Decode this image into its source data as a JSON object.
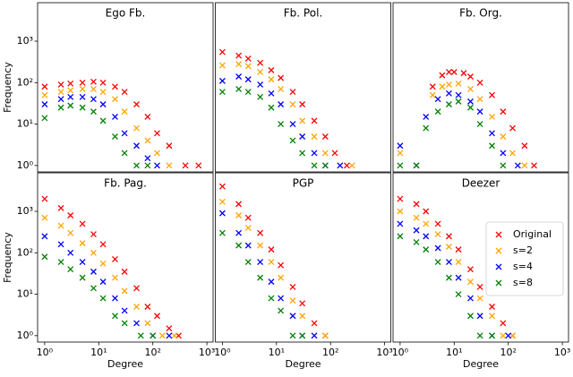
{
  "chart_data": [
    {
      "type": "scatter",
      "title": "Ego Fb.",
      "ylabel": "Frequency",
      "log_x": true,
      "log_y": true,
      "xlim": [
        0.74,
        1300
      ],
      "ylim": [
        0.7,
        8500
      ],
      "yticks": [
        {
          "value": 1,
          "label": "10⁰"
        },
        {
          "value": 10,
          "label": "10¹"
        },
        {
          "value": 100,
          "label": "10²"
        },
        {
          "value": 1000,
          "label": "10³"
        }
      ],
      "series": [
        {
          "color": "#ff0000",
          "x": [
            1,
            2,
            3,
            5,
            8,
            12,
            20,
            30,
            50,
            80,
            120,
            200,
            400,
            700
          ],
          "values": [
            80,
            90,
            95,
            100,
            105,
            100,
            80,
            60,
            30,
            15,
            6,
            3,
            1,
            1
          ]
        },
        {
          "color": "#ffa500",
          "x": [
            1,
            2,
            3,
            5,
            8,
            12,
            20,
            30,
            50,
            80,
            120,
            200
          ],
          "values": [
            50,
            60,
            65,
            70,
            70,
            60,
            40,
            20,
            8,
            4,
            2,
            1
          ]
        },
        {
          "color": "#0000ff",
          "x": [
            1,
            2,
            3,
            5,
            8,
            12,
            20,
            30,
            50,
            80,
            120
          ],
          "values": [
            30,
            40,
            45,
            45,
            40,
            30,
            15,
            6,
            3,
            1.5,
            1
          ]
        },
        {
          "color": "#008000",
          "x": [
            1,
            2,
            3,
            5,
            8,
            12,
            20,
            30,
            50,
            80
          ],
          "values": [
            14,
            25,
            28,
            25,
            20,
            12,
            5,
            2,
            1,
            1
          ]
        }
      ]
    },
    {
      "type": "scatter",
      "title": "Fb. Pol.",
      "log_x": true,
      "log_y": true,
      "xlim": [
        0.74,
        1300
      ],
      "ylim": [
        0.7,
        8500
      ],
      "series": [
        {
          "color": "#ff0000",
          "x": [
            1,
            2,
            3,
            5,
            8,
            12,
            20,
            30,
            50,
            80,
            120,
            200
          ],
          "values": [
            550,
            450,
            380,
            300,
            200,
            130,
            60,
            30,
            12,
            5,
            2,
            1
          ]
        },
        {
          "color": "#ffa500",
          "x": [
            1,
            2,
            3,
            5,
            8,
            12,
            20,
            30,
            50,
            80,
            150,
            250
          ],
          "values": [
            260,
            280,
            250,
            180,
            120,
            70,
            30,
            12,
            5,
            2,
            1,
            1
          ]
        },
        {
          "color": "#0000ff",
          "x": [
            1,
            2,
            3,
            5,
            8,
            12,
            20,
            30,
            50,
            80,
            150
          ],
          "values": [
            110,
            140,
            120,
            90,
            55,
            30,
            10,
            5,
            2,
            1,
            1
          ]
        },
        {
          "color": "#008000",
          "x": [
            1,
            2,
            3,
            5,
            8,
            12,
            20,
            30,
            50,
            80
          ],
          "values": [
            60,
            70,
            60,
            45,
            25,
            10,
            4,
            2,
            1,
            1
          ]
        }
      ]
    },
    {
      "type": "scatter",
      "title": "Fb. Org.",
      "log_x": true,
      "log_y": true,
      "xlim": [
        0.74,
        1300
      ],
      "ylim": [
        0.7,
        8500
      ],
      "series": [
        {
          "color": "#ff0000",
          "x": [
            4,
            6,
            8,
            10,
            15,
            20,
            30,
            50,
            80,
            120,
            200,
            300
          ],
          "values": [
            80,
            150,
            180,
            180,
            170,
            140,
            100,
            50,
            20,
            8,
            3,
            1
          ]
        },
        {
          "color": "#ffa500",
          "x": [
            1,
            2,
            4,
            6,
            8,
            12,
            20,
            30,
            50,
            80,
            120,
            200
          ],
          "values": [
            2,
            1,
            50,
            80,
            90,
            95,
            70,
            40,
            15,
            5,
            2,
            1
          ]
        },
        {
          "color": "#0000ff",
          "x": [
            1,
            2,
            3,
            5,
            8,
            12,
            20,
            30,
            50,
            80,
            150
          ],
          "values": [
            3,
            1,
            15,
            40,
            55,
            50,
            35,
            20,
            6,
            2,
            1
          ]
        },
        {
          "color": "#008000",
          "x": [
            1,
            2,
            3,
            5,
            8,
            12,
            20,
            30,
            50,
            80
          ],
          "values": [
            1,
            1,
            8,
            20,
            30,
            35,
            25,
            10,
            3,
            1
          ]
        }
      ]
    },
    {
      "type": "scatter",
      "title": "Fb. Pag.",
      "xlabel": "Degree",
      "ylabel": "Frequency",
      "log_x": true,
      "log_y": true,
      "xlim": [
        0.74,
        1300
      ],
      "ylim": [
        0.7,
        8500
      ],
      "xticks": [
        {
          "value": 1,
          "label": "10⁰"
        },
        {
          "value": 10,
          "label": "10¹"
        },
        {
          "value": 100,
          "label": "10²"
        },
        {
          "value": 1000,
          "label": "10³"
        }
      ],
      "yticks": [
        {
          "value": 1,
          "label": "10⁰"
        },
        {
          "value": 10,
          "label": "10¹"
        },
        {
          "value": 100,
          "label": "10²"
        },
        {
          "value": 1000,
          "label": "10³"
        }
      ],
      "series": [
        {
          "color": "#ff0000",
          "x": [
            1,
            2,
            3,
            5,
            8,
            12,
            20,
            30,
            50,
            80,
            120,
            200,
            300
          ],
          "values": [
            2000,
            1200,
            800,
            500,
            280,
            160,
            70,
            35,
            14,
            5,
            3,
            1.5,
            1
          ]
        },
        {
          "color": "#ffa500",
          "x": [
            1,
            2,
            3,
            5,
            8,
            12,
            20,
            30,
            50,
            80,
            150,
            250
          ],
          "values": [
            700,
            450,
            300,
            170,
            100,
            55,
            25,
            12,
            5,
            2,
            1,
            1
          ]
        },
        {
          "color": "#0000ff",
          "x": [
            1,
            2,
            3,
            5,
            8,
            12,
            20,
            30,
            50,
            100,
            200
          ],
          "values": [
            250,
            160,
            100,
            60,
            35,
            20,
            8,
            4,
            2,
            1,
            1
          ]
        },
        {
          "color": "#008000",
          "x": [
            1,
            2,
            3,
            5,
            8,
            12,
            20,
            30,
            60,
            100
          ],
          "values": [
            80,
            60,
            40,
            25,
            14,
            8,
            3,
            2,
            1,
            1
          ]
        }
      ]
    },
    {
      "type": "scatter",
      "title": "PGP",
      "xlabel": "Degree",
      "log_x": true,
      "log_y": true,
      "xlim": [
        0.74,
        1300
      ],
      "ylim": [
        0.7,
        8500
      ],
      "xticks": [
        {
          "value": 1,
          "label": "10⁰"
        },
        {
          "value": 10,
          "label": "10¹"
        },
        {
          "value": 100,
          "label": "10²"
        },
        {
          "value": 1000,
          "label": "10³"
        }
      ],
      "series": [
        {
          "color": "#ff0000",
          "x": [
            1,
            2,
            3,
            5,
            8,
            12,
            20,
            30,
            50,
            80
          ],
          "values": [
            4000,
            1500,
            700,
            300,
            120,
            50,
            15,
            6,
            2,
            1
          ]
        },
        {
          "color": "#ffa500",
          "x": [
            1,
            2,
            3,
            5,
            8,
            12,
            20,
            30,
            50,
            80
          ],
          "values": [
            1700,
            800,
            400,
            150,
            60,
            25,
            7,
            3,
            1,
            1
          ]
        },
        {
          "color": "#0000ff",
          "x": [
            1,
            2,
            3,
            5,
            8,
            12,
            20,
            30,
            50
          ],
          "values": [
            900,
            300,
            150,
            60,
            20,
            8,
            3,
            1,
            1
          ]
        },
        {
          "color": "#008000",
          "x": [
            1,
            2,
            3,
            5,
            8,
            12,
            20,
            30
          ],
          "values": [
            300,
            150,
            60,
            25,
            8,
            4,
            1,
            1
          ]
        }
      ]
    },
    {
      "type": "scatter",
      "title": "Deezer",
      "xlabel": "Degree",
      "log_x": true,
      "log_y": true,
      "legend": "upper right",
      "xlim": [
        0.74,
        1300
      ],
      "ylim": [
        0.7,
        8500
      ],
      "xticks": [
        {
          "value": 1,
          "label": "10⁰"
        },
        {
          "value": 10,
          "label": "10¹"
        },
        {
          "value": 100,
          "label": "10²"
        },
        {
          "value": 1000,
          "label": "10³"
        }
      ],
      "series": [
        {
          "name": "Original",
          "color": "#ff0000",
          "x": [
            1,
            2,
            3,
            5,
            8,
            12,
            20,
            30,
            50,
            80,
            120
          ],
          "values": [
            2000,
            1500,
            1000,
            500,
            250,
            120,
            40,
            15,
            5,
            2,
            1
          ]
        },
        {
          "name": "s=2",
          "color": "#ffa500",
          "x": [
            1,
            2,
            3,
            5,
            8,
            12,
            20,
            30,
            50,
            80,
            120
          ],
          "values": [
            1000,
            700,
            500,
            280,
            140,
            60,
            20,
            8,
            3,
            1,
            1
          ]
        },
        {
          "name": "s=4",
          "color": "#0000ff",
          "x": [
            1,
            2,
            3,
            5,
            8,
            12,
            20,
            30,
            50,
            100
          ],
          "values": [
            500,
            350,
            250,
            130,
            60,
            25,
            8,
            3,
            1,
            1
          ]
        },
        {
          "name": "s=8",
          "color": "#008000",
          "x": [
            1,
            2,
            3,
            5,
            8,
            12,
            20,
            30,
            50
          ],
          "values": [
            250,
            180,
            120,
            60,
            25,
            10,
            3,
            1,
            1
          ]
        }
      ]
    }
  ]
}
